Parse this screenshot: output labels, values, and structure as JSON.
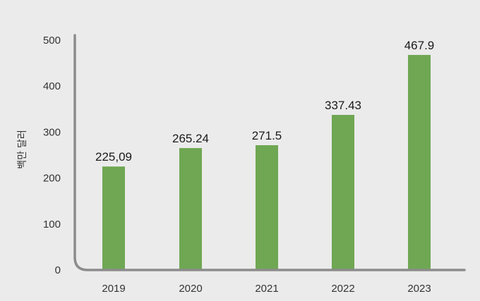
{
  "chart_data": {
    "type": "bar",
    "title": "",
    "xlabel": "",
    "ylabel": "백만 달러",
    "categories": [
      "2019",
      "2020",
      "2021",
      "2022",
      "2023"
    ],
    "values": [
      225.09,
      265.24,
      271.5,
      337.43,
      467.9
    ],
    "data_labels": [
      "225,09",
      "265.24",
      "271.5",
      "337.43",
      "467.9"
    ],
    "yticks": [
      "0",
      "100",
      "200",
      "300",
      "400",
      "500"
    ],
    "ylim": [
      0,
      500
    ],
    "grid": false,
    "legend": "none",
    "colors": {
      "bar": "#6fa753",
      "axis": "#8c8c8c",
      "background": "#ebebeb"
    }
  }
}
